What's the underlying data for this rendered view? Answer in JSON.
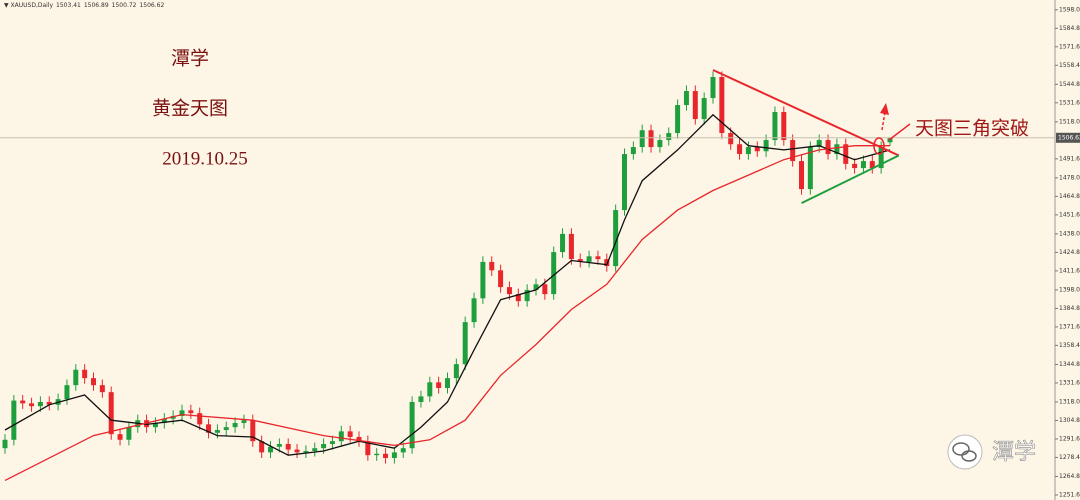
{
  "chart_data": {
    "type": "candlestick",
    "symbol": "XAUUSD,Daily",
    "title": "潭学",
    "subtitle": "黄金天图",
    "date": "2019.10.25",
    "annotation": "天图三角突破",
    "watermark": "潭学",
    "up_color": "#1f9e3e",
    "down_color": "#e8262b",
    "ylim": [
      1248,
      1605
    ],
    "yticks": [
      {
        "value": 1598,
        "label": "1598.00"
      },
      {
        "value": 1584.8,
        "label": "1584.80"
      },
      {
        "value": 1571.6,
        "label": "1571.60"
      },
      {
        "value": 1558.4,
        "label": "1558.40"
      },
      {
        "value": 1544.8,
        "label": "1544.80"
      },
      {
        "value": 1531.6,
        "label": "1531.60"
      },
      {
        "value": 1518,
        "label": "1518.00"
      },
      {
        "value": 1491.6,
        "label": "1491.60"
      },
      {
        "value": 1478,
        "label": "1478.00"
      },
      {
        "value": 1464.8,
        "label": "1464.80"
      },
      {
        "value": 1451.6,
        "label": "1451.60"
      },
      {
        "value": 1438,
        "label": "1438.00"
      },
      {
        "value": 1424.8,
        "label": "1424.80"
      },
      {
        "value": 1411.6,
        "label": "1411.60"
      },
      {
        "value": 1398,
        "label": "1398.00"
      },
      {
        "value": 1384.8,
        "label": "1384.80"
      },
      {
        "value": 1371.6,
        "label": "1371.60"
      },
      {
        "value": 1358.4,
        "label": "1358.40"
      },
      {
        "value": 1344.8,
        "label": "1344.80"
      },
      {
        "value": 1331.6,
        "label": "1331.60"
      },
      {
        "value": 1318,
        "label": "1318.00"
      },
      {
        "value": 1304.8,
        "label": "1304.80"
      },
      {
        "value": 1291.6,
        "label": "1291.60"
      },
      {
        "value": 1278.4,
        "label": "1278.40"
      },
      {
        "value": 1264.8,
        "label": "1264.80"
      },
      {
        "value": 1251.6,
        "label": "1251.60"
      }
    ],
    "candles": {
      "open": [
        1285,
        1291,
        1319,
        1317,
        1315,
        1318,
        1316,
        1320,
        1330,
        1341,
        1335,
        1330,
        1325,
        1295,
        1291,
        1300,
        1305,
        1300,
        1303,
        1306,
        1308,
        1312,
        1310,
        1302,
        1296,
        1298,
        1300,
        1303,
        1305,
        1290,
        1282,
        1286,
        1288,
        1284,
        1282,
        1283,
        1285,
        1288,
        1290,
        1297,
        1293,
        1290,
        1280,
        1281,
        1278,
        1282,
        1285,
        1318,
        1322,
        1332,
        1328,
        1335,
        1345,
        1375,
        1392,
        1418,
        1412,
        1400,
        1395,
        1390,
        1398,
        1402,
        1395,
        1425,
        1438,
        1420,
        1418,
        1422,
        1420,
        1415,
        1455,
        1495,
        1500,
        1512,
        1500,
        1505,
        1510,
        1530,
        1540,
        1520,
        1535,
        1550,
        1510,
        1502,
        1495,
        1500,
        1497,
        1505,
        1525,
        1505,
        1490,
        1470,
        1500,
        1505,
        1495,
        1502,
        1488,
        1485,
        1490,
        1485,
        1503.41
      ],
      "high": [
        1295,
        1323,
        1323,
        1321,
        1322,
        1322,
        1324,
        1334,
        1345,
        1345,
        1339,
        1334,
        1329,
        1299,
        1304,
        1309,
        1309,
        1307,
        1310,
        1312,
        1316,
        1316,
        1314,
        1306,
        1302,
        1304,
        1307,
        1309,
        1309,
        1294,
        1290,
        1292,
        1292,
        1288,
        1287,
        1289,
        1292,
        1294,
        1301,
        1301,
        1297,
        1294,
        1285,
        1285,
        1286,
        1289,
        1322,
        1326,
        1336,
        1336,
        1339,
        1349,
        1379,
        1396,
        1422,
        1422,
        1416,
        1404,
        1399,
        1402,
        1406,
        1406,
        1429,
        1442,
        1442,
        1424,
        1426,
        1426,
        1424,
        1459,
        1499,
        1504,
        1516,
        1516,
        1509,
        1514,
        1534,
        1544,
        1544,
        1539,
        1554,
        1554,
        1514,
        1506,
        1504,
        1504,
        1509,
        1529,
        1529,
        1509,
        1494,
        1504,
        1509,
        1509,
        1506,
        1506,
        1492,
        1494,
        1494,
        1504,
        1506.89
      ],
      "low": [
        1281,
        1287,
        1313,
        1311,
        1311,
        1312,
        1312,
        1316,
        1326,
        1331,
        1326,
        1321,
        1291,
        1287,
        1287,
        1296,
        1296,
        1296,
        1299,
        1302,
        1304,
        1306,
        1298,
        1292,
        1292,
        1294,
        1296,
        1299,
        1286,
        1278,
        1278,
        1282,
        1280,
        1278,
        1278,
        1279,
        1281,
        1284,
        1286,
        1289,
        1286,
        1276,
        1276,
        1274,
        1274,
        1278,
        1281,
        1314,
        1318,
        1324,
        1324,
        1331,
        1341,
        1371,
        1388,
        1408,
        1396,
        1391,
        1386,
        1386,
        1394,
        1391,
        1391,
        1421,
        1416,
        1414,
        1414,
        1416,
        1411,
        1411,
        1451,
        1491,
        1496,
        1496,
        1496,
        1501,
        1506,
        1526,
        1516,
        1516,
        1531,
        1506,
        1498,
        1491,
        1491,
        1493,
        1493,
        1501,
        1501,
        1486,
        1466,
        1466,
        1496,
        1491,
        1491,
        1484,
        1481,
        1481,
        1481,
        1481,
        1500.72
      ],
      "close": [
        1291,
        1319,
        1317,
        1315,
        1318,
        1316,
        1320,
        1330,
        1341,
        1335,
        1330,
        1325,
        1295,
        1291,
        1300,
        1305,
        1300,
        1303,
        1306,
        1308,
        1312,
        1310,
        1302,
        1296,
        1298,
        1300,
        1303,
        1305,
        1290,
        1282,
        1286,
        1288,
        1284,
        1282,
        1283,
        1285,
        1288,
        1290,
        1297,
        1293,
        1290,
        1280,
        1281,
        1278,
        1282,
        1285,
        1318,
        1322,
        1332,
        1328,
        1335,
        1345,
        1375,
        1392,
        1418,
        1412,
        1400,
        1395,
        1390,
        1398,
        1402,
        1395,
        1425,
        1438,
        1420,
        1418,
        1422,
        1420,
        1415,
        1455,
        1495,
        1500,
        1512,
        1500,
        1505,
        1510,
        1530,
        1540,
        1520,
        1535,
        1550,
        1510,
        1502,
        1495,
        1500,
        1497,
        1505,
        1525,
        1505,
        1490,
        1470,
        1500,
        1505,
        1495,
        1502,
        1488,
        1485,
        1490,
        1485,
        1500,
        1506.62
      ]
    },
    "moving_averages": [
      {
        "color": "#111111",
        "x": [
          0,
          5,
          9,
          12,
          16,
          20,
          24,
          28,
          32,
          36,
          40,
          44,
          47,
          50,
          53,
          56,
          60,
          64,
          68,
          70,
          72,
          76,
          80,
          84,
          88,
          92,
          96,
          100
        ],
        "values": [
          1298,
          1316,
          1323,
          1305,
          1302,
          1305,
          1294,
          1293,
          1280,
          1283,
          1290,
          1285,
          1300,
          1318,
          1355,
          1391,
          1398,
          1419,
          1416,
          1448,
          1476,
          1498,
          1523,
          1501,
          1498,
          1501,
          1491,
          1498
        ]
      },
      {
        "color": "#e8262b",
        "x": [
          0,
          10,
          20,
          28,
          36,
          44,
          48,
          52,
          56,
          60,
          64,
          68,
          72,
          76,
          80,
          84,
          88,
          92,
          96,
          100
        ],
        "values": [
          1262,
          1294,
          1309,
          1305,
          1294,
          1287,
          1291,
          1305,
          1337,
          1359,
          1384,
          1402,
          1434,
          1455,
          1469,
          1480,
          1491,
          1498,
          1501,
          1501
        ]
      }
    ],
    "trendlines": [
      {
        "color": "#e8262b",
        "x": [
          80,
          101
        ],
        "values": [
          1555,
          1494
        ]
      },
      {
        "color": "#1f9e3e",
        "x": [
          90,
          101
        ],
        "values": [
          1460,
          1494
        ]
      }
    ]
  }
}
